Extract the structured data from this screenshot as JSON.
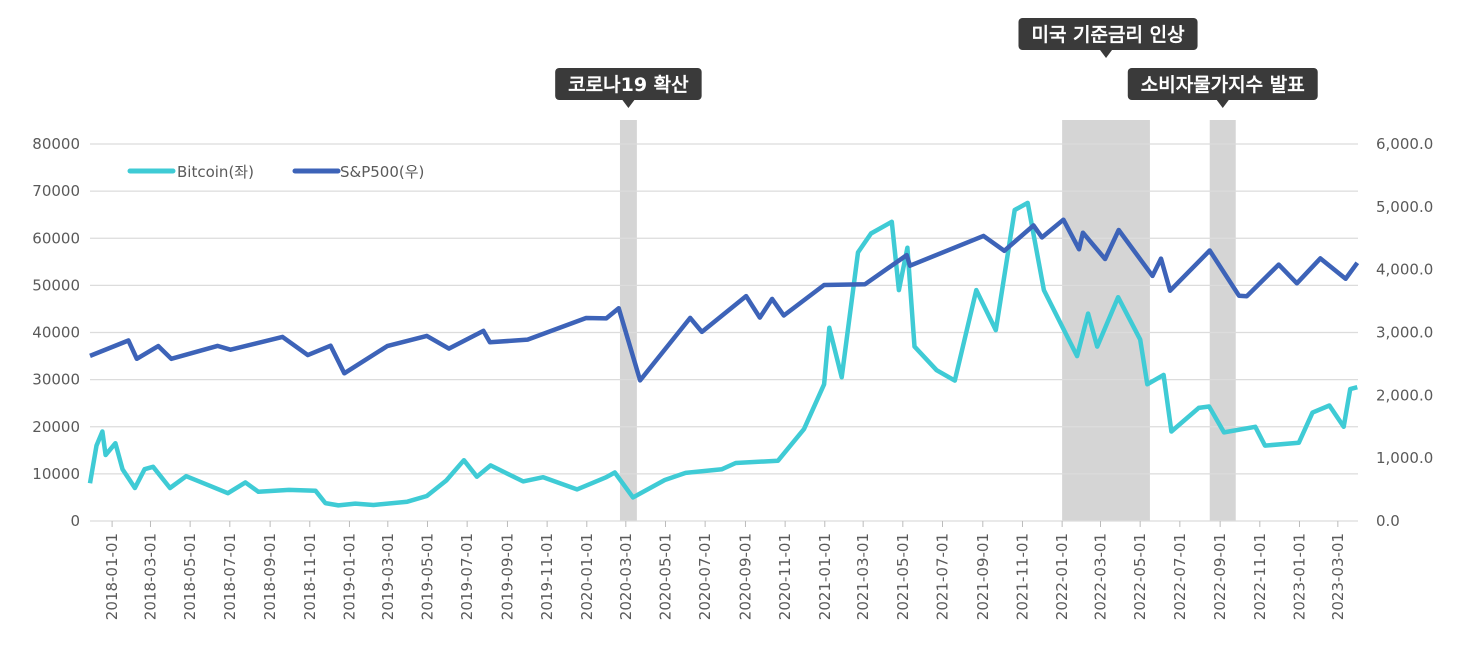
{
  "chart_data": {
    "type": "line",
    "title": "",
    "xlabel": "",
    "ylabel_left": "",
    "ylabel_right": "",
    "x_range": [
      "2017-11-28",
      "2023-04-01"
    ],
    "ylim_left": [
      0,
      80000
    ],
    "ylim_right": [
      0,
      6000
    ],
    "yticks_left": [
      "0",
      "10000",
      "20000",
      "30000",
      "40000",
      "50000",
      "60000",
      "70000",
      "80000"
    ],
    "yticks_right": [
      "0.0",
      "1,000.0",
      "2,000.0",
      "3,000.0",
      "4,000.0",
      "5,000.0",
      "6,000.0"
    ],
    "xticks": [
      "2018-01-01",
      "2018-03-01",
      "2018-05-01",
      "2018-07-01",
      "2018-09-01",
      "2018-11-01",
      "2019-01-01",
      "2019-03-01",
      "2019-05-01",
      "2019-07-01",
      "2019-09-01",
      "2019-11-01",
      "2020-01-01",
      "2020-03-01",
      "2020-05-01",
      "2020-07-01",
      "2020-09-01",
      "2020-11-01",
      "2021-01-01",
      "2021-03-01",
      "2021-05-01",
      "2021-07-01",
      "2021-09-01",
      "2021-11-01",
      "2022-01-01",
      "2022-03-01",
      "2022-05-01",
      "2022-07-01",
      "2022-09-01",
      "2022-11-01",
      "2023-01-01",
      "2023-03-01"
    ],
    "grid": true,
    "legend_position": "top-left",
    "series": [
      {
        "name": "Bitcoin(좌)",
        "axis": "left",
        "color": "#3fcbd5",
        "points": [
          [
            "2017-11-28",
            8000
          ],
          [
            "2017-12-08",
            16000
          ],
          [
            "2017-12-17",
            19000
          ],
          [
            "2017-12-22",
            14000
          ],
          [
            "2018-01-06",
            16500
          ],
          [
            "2018-01-17",
            11000
          ],
          [
            "2018-02-05",
            7000
          ],
          [
            "2018-02-20",
            11000
          ],
          [
            "2018-03-05",
            11500
          ],
          [
            "2018-03-31",
            7000
          ],
          [
            "2018-04-25",
            9500
          ],
          [
            "2018-05-31",
            7500
          ],
          [
            "2018-06-28",
            5900
          ],
          [
            "2018-07-25",
            8200
          ],
          [
            "2018-08-14",
            6200
          ],
          [
            "2018-09-30",
            6600
          ],
          [
            "2018-11-10",
            6400
          ],
          [
            "2018-11-25",
            3800
          ],
          [
            "2018-12-15",
            3300
          ],
          [
            "2019-01-10",
            3700
          ],
          [
            "2019-02-07",
            3400
          ],
          [
            "2019-03-31",
            4100
          ],
          [
            "2019-04-30",
            5300
          ],
          [
            "2019-05-30",
            8600
          ],
          [
            "2019-06-26",
            12900
          ],
          [
            "2019-07-16",
            9400
          ],
          [
            "2019-08-06",
            11800
          ],
          [
            "2019-09-25",
            8400
          ],
          [
            "2019-10-26",
            9300
          ],
          [
            "2019-12-17",
            6700
          ],
          [
            "2020-01-31",
            9300
          ],
          [
            "2020-02-13",
            10300
          ],
          [
            "2020-03-12",
            5000
          ],
          [
            "2020-04-30",
            8700
          ],
          [
            "2020-06-01",
            10200
          ],
          [
            "2020-07-27",
            11000
          ],
          [
            "2020-08-17",
            12300
          ],
          [
            "2020-10-21",
            12800
          ],
          [
            "2020-11-30",
            19500
          ],
          [
            "2020-12-31",
            29000
          ],
          [
            "2021-01-08",
            41000
          ],
          [
            "2021-01-27",
            30500
          ],
          [
            "2021-02-21",
            57000
          ],
          [
            "2021-03-13",
            61000
          ],
          [
            "2021-04-14",
            63500
          ],
          [
            "2021-04-25",
            49000
          ],
          [
            "2021-05-08",
            58000
          ],
          [
            "2021-05-19",
            37000
          ],
          [
            "2021-06-22",
            32000
          ],
          [
            "2021-07-20",
            29800
          ],
          [
            "2021-08-22",
            49000
          ],
          [
            "2021-09-21",
            40500
          ],
          [
            "2021-10-20",
            66000
          ],
          [
            "2021-11-09",
            67500
          ],
          [
            "2021-12-04",
            49000
          ],
          [
            "2022-01-24",
            35000
          ],
          [
            "2022-02-10",
            44000
          ],
          [
            "2022-02-24",
            37000
          ],
          [
            "2022-03-28",
            47500
          ],
          [
            "2022-05-01",
            38500
          ],
          [
            "2022-05-12",
            29000
          ],
          [
            "2022-06-06",
            31000
          ],
          [
            "2022-06-18",
            19000
          ],
          [
            "2022-07-30",
            24000
          ],
          [
            "2022-08-15",
            24300
          ],
          [
            "2022-09-07",
            18800
          ],
          [
            "2022-10-25",
            20000
          ],
          [
            "2022-11-09",
            16000
          ],
          [
            "2022-12-31",
            16600
          ],
          [
            "2023-01-21",
            23000
          ],
          [
            "2023-02-16",
            24500
          ],
          [
            "2023-03-10",
            20000
          ],
          [
            "2023-03-20",
            28000
          ],
          [
            "2023-03-31",
            28400
          ]
        ]
      },
      {
        "name": "S&P500(우)",
        "axis": "right",
        "color": "#3d63b8",
        "points": [
          [
            "2017-11-28",
            2627
          ],
          [
            "2018-01-26",
            2873
          ],
          [
            "2018-02-08",
            2581
          ],
          [
            "2018-03-13",
            2783
          ],
          [
            "2018-04-02",
            2581
          ],
          [
            "2018-06-12",
            2786
          ],
          [
            "2018-07-02",
            2726
          ],
          [
            "2018-09-20",
            2930
          ],
          [
            "2018-10-29",
            2641
          ],
          [
            "2018-12-03",
            2790
          ],
          [
            "2018-12-24",
            2351
          ],
          [
            "2019-02-28",
            2784
          ],
          [
            "2019-04-30",
            2946
          ],
          [
            "2019-06-03",
            2744
          ],
          [
            "2019-07-26",
            3025
          ],
          [
            "2019-08-05",
            2844
          ],
          [
            "2019-10-02",
            2887
          ],
          [
            "2019-12-31",
            3230
          ],
          [
            "2020-01-31",
            3225
          ],
          [
            "2020-02-19",
            3386
          ],
          [
            "2020-03-23",
            2237
          ],
          [
            "2020-06-08",
            3232
          ],
          [
            "2020-06-26",
            3009
          ],
          [
            "2020-09-02",
            3580
          ],
          [
            "2020-09-23",
            3237
          ],
          [
            "2020-10-12",
            3534
          ],
          [
            "2020-10-30",
            3270
          ],
          [
            "2020-12-31",
            3756
          ],
          [
            "2021-03-04",
            3768
          ],
          [
            "2021-05-07",
            4232
          ],
          [
            "2021-05-12",
            4063
          ],
          [
            "2021-09-02",
            4537
          ],
          [
            "2021-10-04",
            4300
          ],
          [
            "2021-11-18",
            4705
          ],
          [
            "2021-12-01",
            4513
          ],
          [
            "2022-01-03",
            4796
          ],
          [
            "2022-01-27",
            4326
          ],
          [
            "2022-02-02",
            4589
          ],
          [
            "2022-03-08",
            4170
          ],
          [
            "2022-03-29",
            4631
          ],
          [
            "2022-05-20",
            3901
          ],
          [
            "2022-06-02",
            4176
          ],
          [
            "2022-06-16",
            3666
          ],
          [
            "2022-08-16",
            4305
          ],
          [
            "2022-09-30",
            3585
          ],
          [
            "2022-10-12",
            3577
          ],
          [
            "2022-11-30",
            4080
          ],
          [
            "2022-12-28",
            3783
          ],
          [
            "2023-02-02",
            4179
          ],
          [
            "2023-03-13",
            3855
          ],
          [
            "2023-03-31",
            4109
          ]
        ]
      }
    ],
    "shaded_periods": [
      {
        "label": "코로나19 확산",
        "start": "2020-02-21",
        "end": "2020-03-18",
        "color": "#d5d5d5"
      },
      {
        "label": "미국 기준금리 인상",
        "start": "2022-01-01",
        "end": "2022-05-16",
        "color": "#d5d5d5"
      },
      {
        "label": "소비자물가지수 발표",
        "start": "2022-08-16",
        "end": "2022-09-25",
        "color": "#d5d5d5"
      }
    ],
    "annotation_box_color": "#3a3a3a"
  }
}
